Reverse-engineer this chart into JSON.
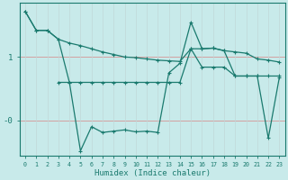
{
  "xlabel": "Humidex (Indice chaleur)",
  "bg_color": "#c8eaea",
  "line_color": "#1a7a6e",
  "grid_color_h": "#d4a0a0",
  "grid_color_v": "#c0d8d8",
  "xlim": [
    -0.5,
    23.5
  ],
  "ylim": [
    -0.55,
    1.85
  ],
  "ytick_vals": [
    1.0,
    0.0
  ],
  "ytick_labels": [
    "1",
    "-0"
  ],
  "line1_x": [
    0,
    1,
    2,
    3,
    4,
    5,
    6,
    7,
    8,
    9,
    10,
    11,
    12,
    13,
    14,
    15,
    16,
    17,
    18,
    19,
    20,
    21,
    22,
    23
  ],
  "line1_y": [
    1.72,
    1.42,
    1.42,
    1.28,
    1.22,
    1.18,
    1.13,
    1.08,
    1.04,
    1.0,
    0.99,
    0.97,
    0.95,
    0.94,
    0.93,
    1.13,
    1.13,
    1.14,
    1.1,
    1.08,
    1.06,
    0.97,
    0.95,
    0.92
  ],
  "line2_x": [
    0,
    1,
    2,
    3,
    4,
    5,
    6,
    7,
    8,
    9,
    10,
    11,
    12,
    13,
    14,
    15,
    16,
    17,
    18,
    19,
    20,
    21,
    22,
    23
  ],
  "line2_y": [
    1.72,
    1.42,
    1.42,
    1.28,
    0.6,
    -0.48,
    -0.1,
    -0.19,
    -0.17,
    -0.15,
    -0.18,
    -0.17,
    -0.19,
    0.75,
    0.9,
    1.55,
    1.13,
    1.14,
    1.1,
    0.7,
    0.7,
    0.7,
    -0.28,
    0.68
  ],
  "line3_x": [
    3,
    4,
    5,
    6,
    7,
    8,
    9,
    10,
    11,
    12,
    13,
    14,
    15,
    16,
    17,
    18,
    19,
    20,
    21,
    22,
    23
  ],
  "line3_y": [
    0.6,
    0.6,
    0.6,
    0.6,
    0.6,
    0.6,
    0.6,
    0.6,
    0.6,
    0.6,
    0.6,
    0.6,
    1.13,
    0.84,
    0.84,
    0.84,
    0.7,
    0.7,
    0.7,
    0.7,
    0.7
  ]
}
